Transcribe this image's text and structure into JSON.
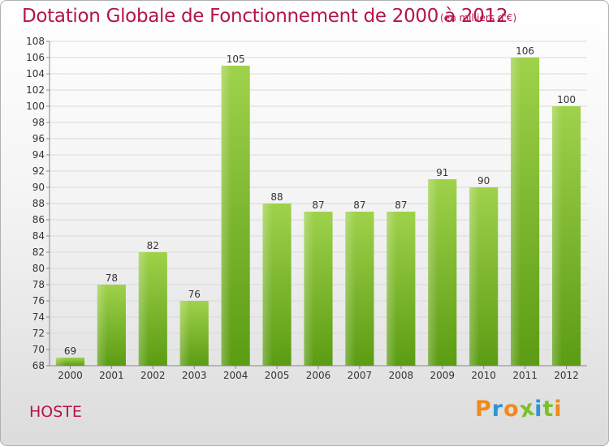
{
  "title": "Dotation Globale de Fonctionnement de 2000 à 2012",
  "unit_note": "(en milliers d'€)",
  "commune": "HOSTE",
  "logo": {
    "letters": [
      "P",
      "r",
      "o",
      "x",
      "i",
      "t",
      "i"
    ]
  },
  "colors": {
    "title": "#b5134f",
    "bar_light": "#9fd24b",
    "bar_dark": "#5b9c13",
    "grid": "#d9d9d9",
    "logo": [
      "#f08a1c",
      "#2f93d6",
      "#f08a1c",
      "#7cc02a",
      "#2f93d6",
      "#7cc02a",
      "#f08a1c"
    ]
  },
  "chart_data": {
    "type": "bar",
    "title": "Dotation Globale de Fonctionnement de 2000 à 2012",
    "ylabel": "",
    "xlabel": "",
    "categories": [
      "2000",
      "2001",
      "2002",
      "2003",
      "2004",
      "2005",
      "2006",
      "2007",
      "2008",
      "2009",
      "2010",
      "2011",
      "2012"
    ],
    "values": [
      69,
      78,
      82,
      76,
      105,
      88,
      87,
      87,
      87,
      91,
      90,
      106,
      100
    ],
    "ylim": [
      68,
      108
    ],
    "yticks": [
      68,
      70,
      72,
      74,
      76,
      78,
      80,
      82,
      84,
      86,
      88,
      90,
      92,
      94,
      96,
      98,
      100,
      102,
      104,
      106,
      108
    ],
    "grid": true,
    "legend": "none"
  }
}
